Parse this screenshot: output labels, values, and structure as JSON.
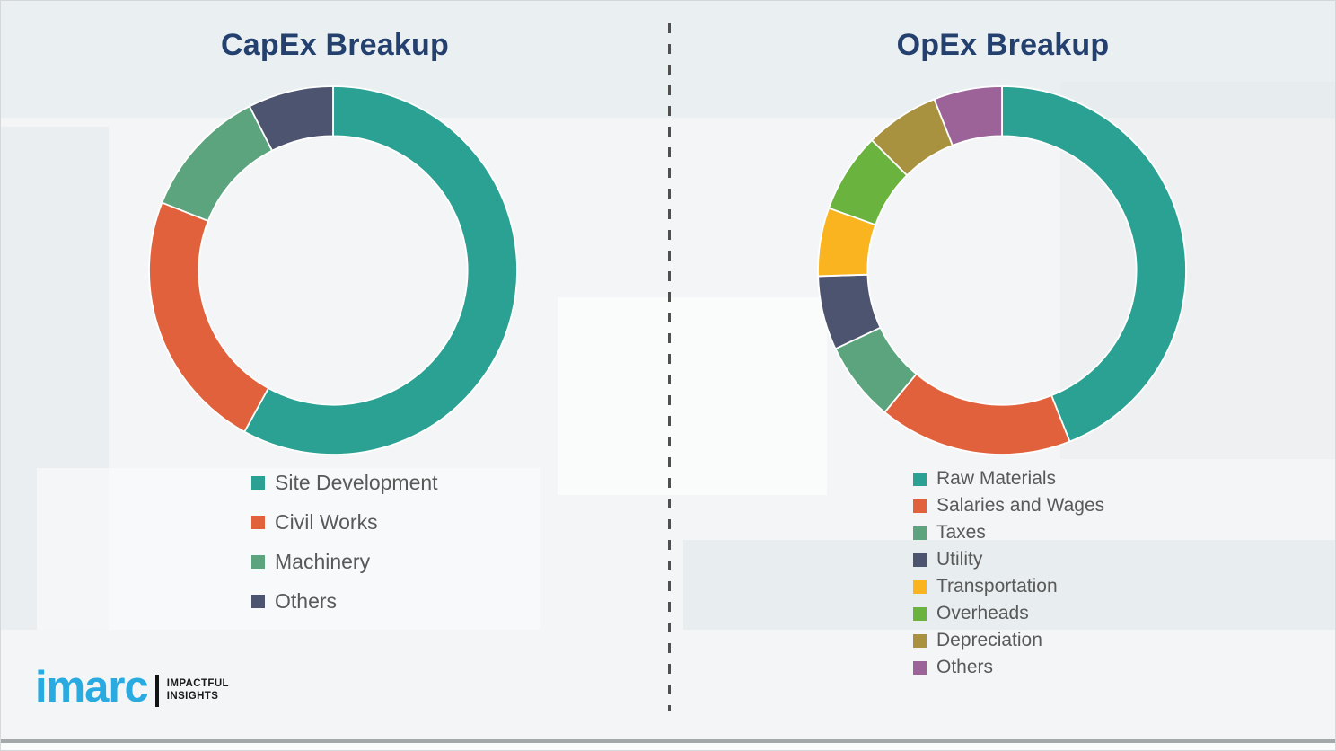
{
  "page": {
    "background_color": "#f3f5f6",
    "title_color": "#24406E",
    "legend_text_color": "#595959",
    "divider_color": "#4f4f4f",
    "divider_style": "vertical-dashed"
  },
  "chart_data": [
    {
      "type": "pie",
      "subtype": "donut",
      "title": "CapEx Breakup",
      "categories": [
        "Site Development",
        "Civil Works",
        "Machinery",
        "Others"
      ],
      "values": [
        58,
        23,
        11.5,
        7.5
      ],
      "colors": [
        "#2AA192",
        "#E2613D",
        "#5CA47D",
        "#4D5470"
      ],
      "units": "percent",
      "start_angle_deg": 0,
      "direction": "clockwise",
      "donut_hole_ratio": 0.73,
      "segment_gap_color": "#FFFFFF",
      "legend_position": "below-left",
      "data_labels_shown": false
    },
    {
      "type": "pie",
      "subtype": "donut",
      "title": "OpEx Breakup",
      "categories": [
        "Raw Materials",
        "Salaries and Wages",
        "Taxes",
        "Utility",
        "Transportation",
        "Overheads",
        "Depreciation",
        "Others"
      ],
      "values": [
        44,
        17,
        7,
        6.5,
        6,
        7,
        6.5,
        6
      ],
      "colors": [
        "#2AA192",
        "#E2613D",
        "#5CA47D",
        "#4D5470",
        "#F9B41F",
        "#6AB33E",
        "#A8913F",
        "#9C6399"
      ],
      "units": "percent",
      "start_angle_deg": 0,
      "direction": "clockwise",
      "donut_hole_ratio": 0.73,
      "segment_gap_color": "#FFFFFF",
      "legend_position": "below-left",
      "data_labels_shown": false
    }
  ],
  "logo": {
    "brand": "imarc",
    "brand_color": "#29ABE2",
    "tagline_line1": "IMPACTFUL",
    "tagline_line2": "INSIGHTS"
  }
}
